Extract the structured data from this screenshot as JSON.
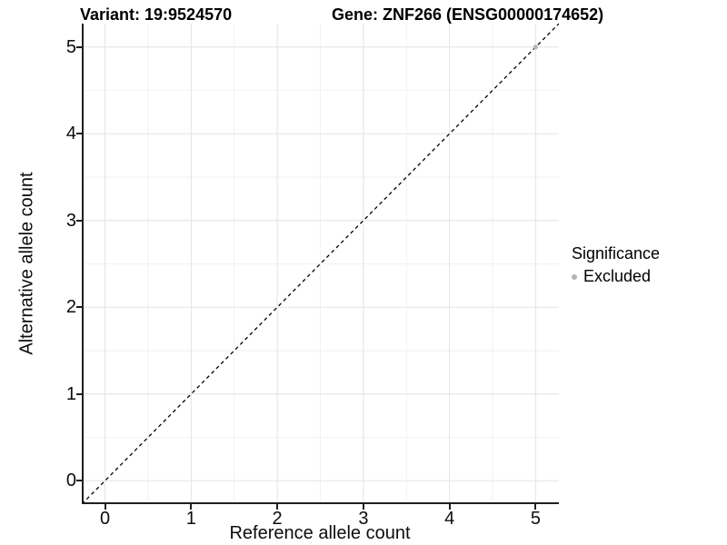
{
  "header": {
    "variant_title": "Variant: 19:9524570",
    "gene_title": "Gene: ZNF266 (ENSG00000174652)"
  },
  "legend": {
    "title": "Significance",
    "items": [
      {
        "label": "Excluded",
        "color": "#b4b4b4"
      }
    ]
  },
  "chart_data": {
    "type": "scatter",
    "title": "Variant: 19:9524570   Gene: ZNF266 (ENSG00000174652)",
    "xlabel": "Reference allele count",
    "ylabel": "Alternative allele count",
    "xlim": [
      -0.27,
      5.27
    ],
    "ylim": [
      -0.27,
      5.27
    ],
    "x_ticks": [
      0,
      1,
      2,
      3,
      4,
      5
    ],
    "y_ticks": [
      0,
      1,
      2,
      3,
      4,
      5
    ],
    "grid": "major and minor gridlines on, white panel",
    "legend_position": "right",
    "reference_line": {
      "kind": "identity",
      "slope": 1,
      "intercept": 0,
      "style": "dashed",
      "color": "#000000"
    },
    "series": [
      {
        "name": "Excluded",
        "color": "#b4b4b4",
        "points": [
          {
            "x": 5,
            "y": 5
          }
        ]
      }
    ],
    "colors": {
      "grid_major": "#e4e4e4",
      "grid_minor": "#f2f2f2",
      "axis": "#1f1f1f",
      "point": "#b4b4b4"
    }
  }
}
